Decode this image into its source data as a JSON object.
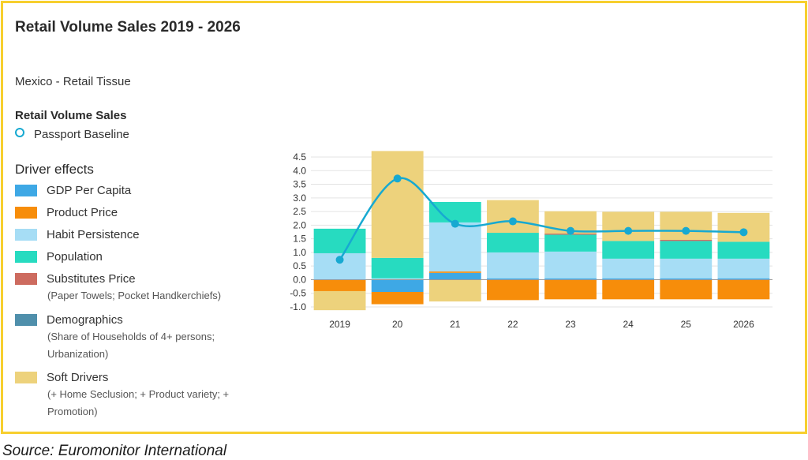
{
  "title": "Retail Volume Sales 2019 - 2026",
  "subtitle": "Mexico - Retail Tissue",
  "retail_volume_heading": "Retail Volume Sales",
  "baseline_label": "Passport Baseline",
  "driver_heading": "Driver effects",
  "source": "Source: Euromonitor International",
  "colors": {
    "gdp": "#3ea8e5",
    "price": "#f78d0a",
    "habit": "#a6ddf5",
    "population": "#27dbc0",
    "substitutes": "#cd6b5f",
    "demographics": "#4f8fab",
    "soft": "#edd27c",
    "line": "#17a9d1",
    "frame": "#f7cf2e"
  },
  "legend": [
    {
      "key": "gdp",
      "label": "GDP Per Capita",
      "note": ""
    },
    {
      "key": "price",
      "label": "Product Price",
      "note": ""
    },
    {
      "key": "habit",
      "label": "Habit Persistence",
      "note": ""
    },
    {
      "key": "population",
      "label": "Population",
      "note": ""
    },
    {
      "key": "substitutes",
      "label": "Substitutes Price",
      "note": "(Paper Towels; Pocket Handkerchiefs)"
    },
    {
      "key": "demographics",
      "label": "Demographics",
      "note": "(Share of Households of 4+ persons; Urbanization)"
    },
    {
      "key": "soft",
      "label": "Soft Drivers",
      "note": "(+ Home Seclusion; + Product variety; + Promotion)"
    }
  ],
  "chart_data": {
    "type": "bar",
    "stacked": true,
    "categories": [
      "2019",
      "20",
      "21",
      "22",
      "23",
      "24",
      "25",
      "2026"
    ],
    "ylim": [
      -1.0,
      4.5
    ],
    "yticks": [
      "4.5",
      "4.0",
      "3.5",
      "3.0",
      "2.5",
      "2.0",
      "1.5",
      "1.0",
      "0.5",
      "0.0",
      "-0.5",
      "-1.0"
    ],
    "grid": true,
    "series": [
      {
        "key": "gdp",
        "name": "GDP Per Capita",
        "values": [
          0.02,
          -0.45,
          0.25,
          0.05,
          0.05,
          0.05,
          0.05,
          0.05
        ]
      },
      {
        "key": "price",
        "name": "Product Price",
        "values": [
          -0.42,
          -0.45,
          0.05,
          -0.75,
          -0.72,
          -0.72,
          -0.72,
          -0.72
        ]
      },
      {
        "key": "habit",
        "name": "Habit Persistence",
        "values": [
          0.95,
          0.05,
          1.8,
          0.95,
          0.98,
          0.72,
          0.72,
          0.72
        ]
      },
      {
        "key": "population",
        "name": "Population",
        "values": [
          0.9,
          0.75,
          0.75,
          0.72,
          0.62,
          0.65,
          0.65,
          0.62
        ]
      },
      {
        "key": "substitutes",
        "name": "Substitutes Price",
        "values": [
          0,
          0,
          0,
          0,
          0.04,
          0,
          0.04,
          0
        ]
      },
      {
        "key": "demographics",
        "name": "Demographics",
        "values": [
          0,
          0,
          0,
          0,
          0,
          0,
          0,
          0
        ]
      },
      {
        "key": "soft",
        "name": "Soft Drivers",
        "values": [
          -0.7,
          3.92,
          -0.8,
          1.2,
          0.82,
          1.07,
          1.03,
          1.06
        ]
      }
    ],
    "line": {
      "name": "Passport Baseline",
      "values": [
        0.73,
        3.71,
        2.05,
        2.14,
        1.79,
        1.79,
        1.79,
        1.74
      ]
    }
  }
}
